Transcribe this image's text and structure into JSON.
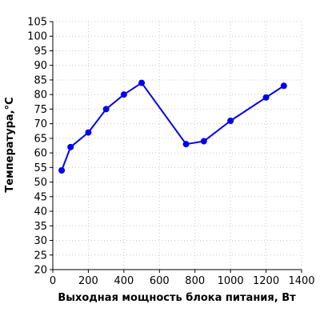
{
  "chart_data": {
    "type": "line",
    "title": "",
    "xlabel": "Выходная мощность блока питания, Вт",
    "ylabel": "Температура,°C",
    "xlim": [
      0,
      1400
    ],
    "ylim": [
      20,
      105
    ],
    "x_ticks": [
      0,
      200,
      400,
      600,
      800,
      1000,
      1200,
      1400
    ],
    "y_ticks": [
      20,
      25,
      30,
      35,
      40,
      45,
      50,
      55,
      60,
      65,
      70,
      75,
      80,
      85,
      90,
      95,
      100,
      105
    ],
    "grid": true,
    "series": [
      {
        "color": "#0000ee",
        "x": [
          50,
          100,
          200,
          300,
          400,
          500,
          750,
          850,
          1000,
          1200,
          1300
        ],
        "y": [
          54,
          62,
          67,
          75,
          80,
          84,
          63,
          64,
          71,
          79,
          83
        ]
      }
    ]
  }
}
